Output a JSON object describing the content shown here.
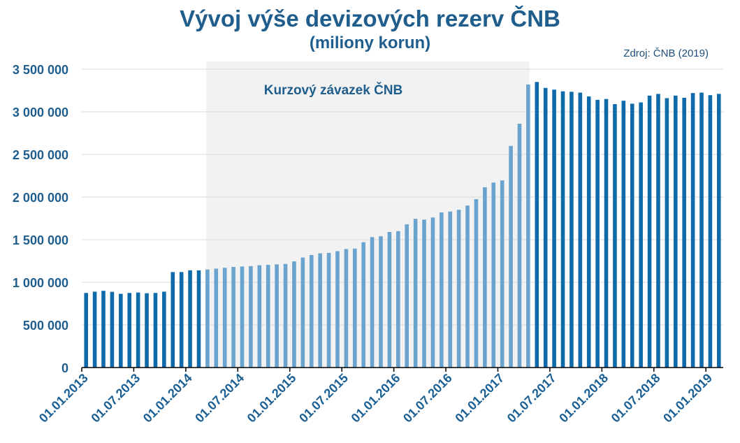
{
  "title": "Vývoj výše devizových rezerv ČNB",
  "subtitle": "(miliony korun)",
  "source": "Zdroj:  ČNB  (2019)",
  "colors": {
    "dark": "#0e6aa8",
    "light": "#6aa3cd",
    "shade": "#f2f2f2",
    "text": "#1f5d8c"
  },
  "chart_data": {
    "type": "bar",
    "ylim": [
      0,
      3500000
    ],
    "yticks": [
      "0",
      "500 000",
      "1 000 000",
      "1 500 000",
      "2 000 000",
      "2 500 000",
      "3 000 000",
      "3 500 000"
    ],
    "xticks": [
      "01.01.2013",
      "01.07.2013",
      "01.01.2014",
      "01.07.2014",
      "01.01.2015",
      "01.07.2015",
      "01.01.2016",
      "01.07.2016",
      "01.01.2017",
      "01.07.2017",
      "01.01.2018",
      "01.07.2018",
      "01.01.2019"
    ],
    "grid": true,
    "annotation": {
      "text": "Kurzový závazek ČNB",
      "from_index": 14,
      "to_index": 51
    },
    "values": [
      875000,
      890000,
      900000,
      888000,
      865000,
      875000,
      880000,
      872000,
      875000,
      890000,
      1120000,
      1120000,
      1140000,
      1140000,
      1150000,
      1160000,
      1170000,
      1180000,
      1185000,
      1190000,
      1200000,
      1205000,
      1210000,
      1215000,
      1245000,
      1290000,
      1320000,
      1340000,
      1345000,
      1365000,
      1390000,
      1395000,
      1470000,
      1530000,
      1540000,
      1590000,
      1600000,
      1680000,
      1745000,
      1735000,
      1760000,
      1820000,
      1830000,
      1850000,
      1900000,
      1975000,
      2115000,
      2170000,
      2195000,
      2600000,
      2860000,
      3320000,
      3350000,
      3280000,
      3260000,
      3240000,
      3235000,
      3225000,
      3180000,
      3140000,
      3150000,
      3090000,
      3130000,
      3095000,
      3110000,
      3190000,
      3210000,
      3160000,
      3190000,
      3165000,
      3220000,
      3225000,
      3195000,
      3210000
    ]
  }
}
